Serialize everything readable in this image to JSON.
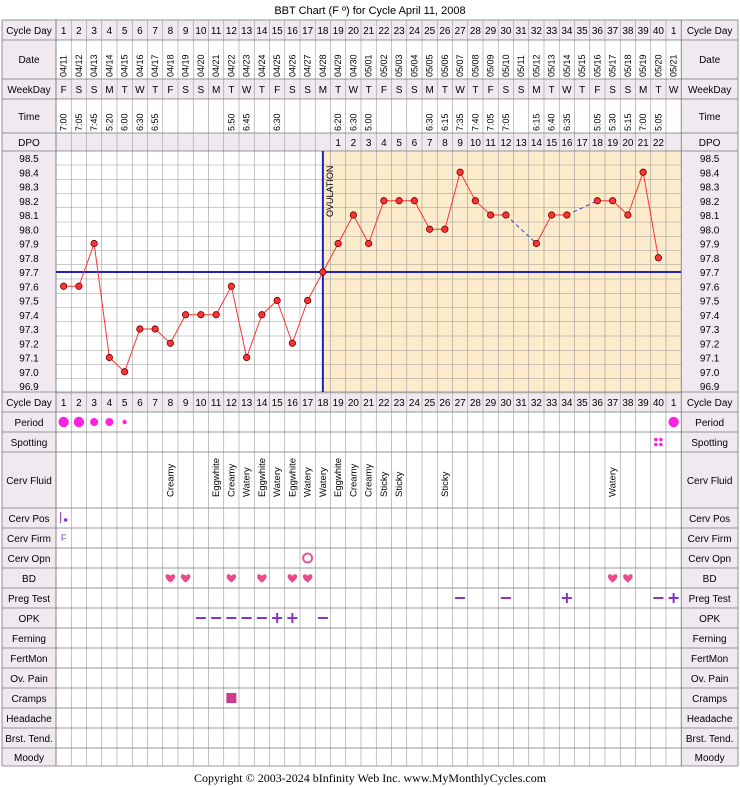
{
  "title": "BBT Chart (F º) for Cycle April 11, 2008",
  "footer": "Copyright © 2003-2024 bInfinity Web Inc.     www.MyMonthlyCycles.com",
  "row_labels": {
    "cycle_day": "Cycle Day",
    "date": "Date",
    "weekday": "WeekDay",
    "time": "Time",
    "dpo": "DPO",
    "period": "Period",
    "spotting": "Spotting",
    "cerv_fluid": "Cerv Fluid",
    "cerv_pos": "Cerv Pos",
    "cerv_firm": "Cerv Firm",
    "cerv_opn": "Cerv Opn",
    "bd": "BD",
    "preg_test": "Preg Test",
    "opk": "OPK",
    "ferning": "Ferning",
    "fertmon": "FertMon",
    "ov_pain": "Ov. Pain",
    "cramps": "Cramps",
    "headache": "Headache",
    "brst_tend": "Brst. Tend.",
    "moody": "Moody"
  },
  "cycle_days": [
    "1",
    "2",
    "3",
    "4",
    "5",
    "6",
    "7",
    "8",
    "9",
    "10",
    "11",
    "12",
    "13",
    "14",
    "15",
    "16",
    "17",
    "18",
    "19",
    "20",
    "21",
    "22",
    "23",
    "24",
    "25",
    "26",
    "27",
    "28",
    "29",
    "30",
    "31",
    "32",
    "33",
    "34",
    "35",
    "36",
    "37",
    "38",
    "39",
    "40",
    "1"
  ],
  "dates": [
    "04/11",
    "04/12",
    "04/13",
    "04/14",
    "04/15",
    "04/16",
    "04/17",
    "04/18",
    "04/19",
    "04/20",
    "04/21",
    "04/22",
    "04/23",
    "04/24",
    "04/25",
    "04/26",
    "04/27",
    "04/28",
    "04/29",
    "04/30",
    "05/01",
    "05/02",
    "05/03",
    "05/04",
    "05/05",
    "05/06",
    "05/07",
    "05/08",
    "05/09",
    "05/10",
    "05/11",
    "05/12",
    "05/13",
    "05/14",
    "05/15",
    "05/16",
    "05/17",
    "05/18",
    "05/19",
    "05/20",
    "05/21"
  ],
  "weekdays": [
    "F",
    "S",
    "S",
    "M",
    "T",
    "W",
    "T",
    "F",
    "S",
    "S",
    "M",
    "T",
    "W",
    "T",
    "F",
    "S",
    "S",
    "M",
    "T",
    "W",
    "T",
    "F",
    "S",
    "S",
    "M",
    "T",
    "W",
    "T",
    "F",
    "S",
    "S",
    "M",
    "T",
    "W",
    "T",
    "F",
    "S",
    "S",
    "M",
    "T",
    "W"
  ],
  "times": [
    "7:00",
    "7:05",
    "7:45",
    "5:20",
    "6:00",
    "6:30",
    "6:55",
    "",
    "",
    "",
    "",
    "5:50",
    "6:45",
    "",
    "6:30",
    "",
    "",
    "",
    "6:20",
    "6:30",
    "5:00",
    "",
    "",
    "",
    "6:30",
    "6:15",
    "7:35",
    "7:40",
    "7:05",
    "7:05",
    "",
    "6:15",
    "6:40",
    "6:35",
    "",
    "5:05",
    "5:30",
    "5:15",
    "7:00",
    "5:05",
    ""
  ],
  "dpo": [
    "",
    "",
    "",
    "",
    "",
    "",
    "",
    "",
    "",
    "",
    "",
    "",
    "",
    "",
    "",
    "",
    "",
    "",
    "1",
    "2",
    "3",
    "4",
    "5",
    "6",
    "7",
    "8",
    "9",
    "10",
    "11",
    "12",
    "13",
    "14",
    "15",
    "16",
    "17",
    "18",
    "19",
    "20",
    "21",
    "22",
    ""
  ],
  "chart_data": {
    "type": "line",
    "title": "BBT Chart (F º) for Cycle April 11, 2008",
    "xlabel": "Cycle Day",
    "ylabel": "",
    "ylim": [
      96.9,
      98.5
    ],
    "y_ticks": [
      "98.5",
      "98.4",
      "98.3",
      "98.2",
      "98.1",
      "98.0",
      "97.9",
      "97.8",
      "97.7",
      "97.6",
      "97.5",
      "97.4",
      "97.3",
      "97.2",
      "97.1",
      "97.0",
      "96.9"
    ],
    "temps": [
      97.6,
      97.6,
      97.9,
      97.1,
      97.0,
      97.3,
      97.3,
      97.2,
      97.4,
      97.4,
      97.4,
      97.6,
      97.1,
      97.4,
      97.5,
      97.2,
      97.5,
      97.7,
      97.9,
      98.1,
      97.9,
      98.2,
      98.2,
      98.2,
      98.0,
      98.0,
      98.4,
      98.2,
      98.1,
      98.1,
      null,
      97.9,
      98.1,
      98.1,
      null,
      98.2,
      98.2,
      98.1,
      98.4,
      97.8,
      null
    ],
    "coverline": 97.7,
    "ovulation_day_index": 17,
    "ovulation_label": "OVULATION"
  },
  "period": [
    3,
    3,
    2,
    2,
    1,
    0,
    0,
    0,
    0,
    0,
    0,
    0,
    0,
    0,
    0,
    0,
    0,
    0,
    0,
    0,
    0,
    0,
    0,
    0,
    0,
    0,
    0,
    0,
    0,
    0,
    0,
    0,
    0,
    0,
    0,
    0,
    0,
    0,
    0,
    0,
    3
  ],
  "spotting_days": [
    39
  ],
  "cerv_fluid": [
    "",
    "",
    "",
    "",
    "",
    "",
    "",
    "Creamy",
    "",
    "",
    "Eggwhite",
    "Creamy",
    "Watery",
    "Eggwhite",
    "Watery",
    "Eggwhite",
    "Watery",
    "Watery",
    "Eggwhite",
    "Creamy",
    "Creamy",
    "Sticky",
    "Sticky",
    "",
    "",
    "Sticky",
    "",
    "",
    "",
    "",
    "",
    "",
    "",
    "",
    "",
    "",
    "Watery",
    "",
    "",
    "",
    ""
  ],
  "cerv_pos_day": 0,
  "cerv_firm_day": 0,
  "cerv_firm_text": "F",
  "cerv_opn_day": 16,
  "bd_days": [
    7,
    8,
    11,
    13,
    15,
    16,
    36,
    37
  ],
  "preg_test": [
    {
      "day": 26,
      "sign": "−"
    },
    {
      "day": 29,
      "sign": "−"
    },
    {
      "day": 33,
      "sign": "+"
    },
    {
      "day": 39,
      "sign": "−"
    },
    {
      "day": 40,
      "sign": "+"
    }
  ],
  "opk": [
    {
      "day": 9,
      "sign": "−"
    },
    {
      "day": 10,
      "sign": "−"
    },
    {
      "day": 11,
      "sign": "−"
    },
    {
      "day": 12,
      "sign": "−"
    },
    {
      "day": 13,
      "sign": "−"
    },
    {
      "day": 14,
      "sign": "+"
    },
    {
      "day": 15,
      "sign": "+"
    },
    {
      "day": 17,
      "sign": "−"
    }
  ],
  "cramps_days": [
    11
  ],
  "colors": {
    "accent": "#ff3333",
    "coverline": "#2222bb",
    "luteal": "#fdeccc",
    "pink": "#ff22dd",
    "purple": "#8833cc",
    "grid": "#999999",
    "header": "#f0eaf0"
  }
}
